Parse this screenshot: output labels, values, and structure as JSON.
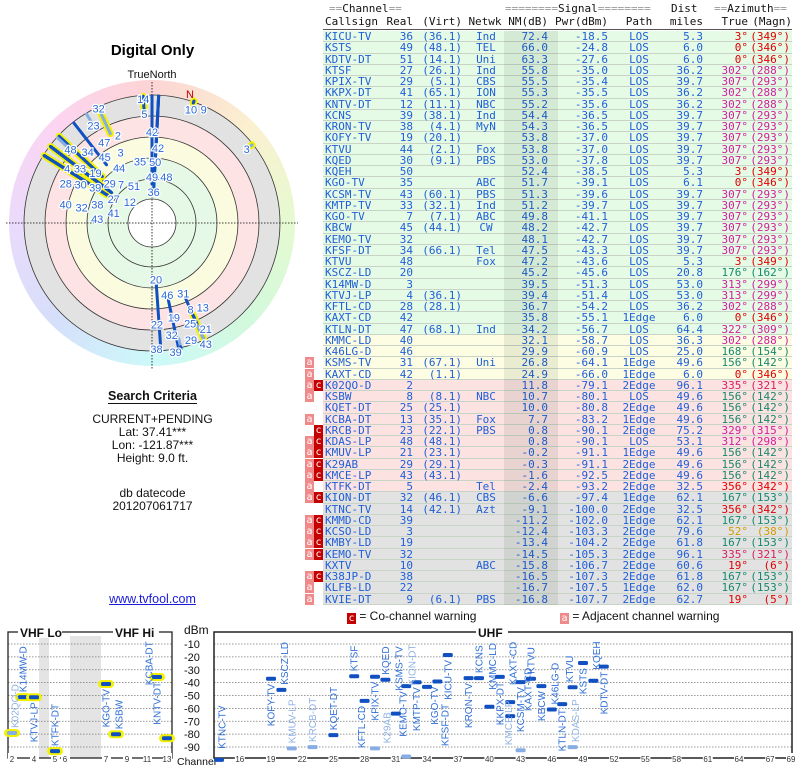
{
  "header": {
    "title": "Digital Only",
    "north_label": "TrueNorth",
    "n_marker": "N"
  },
  "criteria": {
    "heading": "Search Criteria",
    "mode": "CURRENT+PENDING",
    "lat": "Lat: 37.41***",
    "lon": "Lon: -121.87***",
    "height": "Height: 9.0 ft.",
    "db_label": "db datecode",
    "db_code": "201207061717",
    "link": "www.tvfool.com"
  },
  "table": {
    "group_headers": {
      "channel": "Channel",
      "signal": "Signal",
      "dist": "Dist",
      "azimuth": "Azimuth"
    },
    "columns": {
      "callsign": "Callsign",
      "real": "Real",
      "virt": "(Virt)",
      "netwk": "Netwk",
      "nm": "NM(dB)",
      "pwr": "Pwr(dBm)",
      "path": "Path",
      "dist": "miles",
      "true": "True",
      "magn": "(Magn)"
    },
    "zone_colors": {
      "green": "#e6fbe6",
      "yellow": "#fdfde3",
      "pink": "#fde2e2",
      "gray": "#e2e2e2"
    },
    "rows": [
      {
        "flags": "",
        "call": "KICU-TV",
        "real": "36",
        "virt": "(36.1)",
        "net": "Ind",
        "nm": "72.4",
        "pwr": "-18.5",
        "path": "LOS",
        "dist": "5.3",
        "true": "3°",
        "magn": "(349°)",
        "zone": "green",
        "az": "#e00000"
      },
      {
        "flags": "",
        "call": "KSTS",
        "real": "49",
        "virt": "(48.1)",
        "net": "TEL",
        "nm": "66.0",
        "pwr": "-24.8",
        "path": "LOS",
        "dist": "6.0",
        "true": "0°",
        "magn": "(346°)",
        "zone": "green",
        "az": "#e00000"
      },
      {
        "flags": "",
        "call": "KDTV-DT",
        "real": "51",
        "virt": "(14.1)",
        "net": "Uni",
        "nm": "63.3",
        "pwr": "-27.6",
        "path": "LOS",
        "dist": "6.0",
        "true": "0°",
        "magn": "(346°)",
        "zone": "green",
        "az": "#e00000"
      },
      {
        "flags": "",
        "call": "KTSF",
        "real": "27",
        "virt": "(26.1)",
        "net": "Ind",
        "nm": "55.8",
        "pwr": "-35.0",
        "path": "LOS",
        "dist": "36.2",
        "true": "302°",
        "magn": "(288°)",
        "zone": "green",
        "az": "#d0209c"
      },
      {
        "flags": "",
        "call": "KPIX-TV",
        "real": "29",
        "virt": "(5.1)",
        "net": "CBS",
        "nm": "55.5",
        "pwr": "-35.4",
        "path": "LOS",
        "dist": "39.7",
        "true": "307°",
        "magn": "(293°)",
        "zone": "green",
        "az": "#d0209c"
      },
      {
        "flags": "",
        "call": "KKPX-DT",
        "real": "41",
        "virt": "(65.1)",
        "net": "ION",
        "nm": "55.3",
        "pwr": "-35.5",
        "path": "LOS",
        "dist": "36.2",
        "true": "302°",
        "magn": "(288°)",
        "zone": "green",
        "az": "#d0209c"
      },
      {
        "flags": "",
        "call": "KNTV-DT",
        "real": "12",
        "virt": "(11.1)",
        "net": "NBC",
        "nm": "55.2",
        "pwr": "-35.6",
        "path": "LOS",
        "dist": "36.2",
        "true": "302°",
        "magn": "(288°)",
        "zone": "green",
        "az": "#d0209c"
      },
      {
        "flags": "",
        "call": "KCNS",
        "real": "39",
        "virt": "(38.1)",
        "net": "Ind",
        "nm": "54.4",
        "pwr": "-36.5",
        "path": "LOS",
        "dist": "39.7",
        "true": "307°",
        "magn": "(293°)",
        "zone": "green",
        "az": "#d0209c"
      },
      {
        "flags": "",
        "call": "KRON-TV",
        "real": "38",
        "virt": "(4.1)",
        "net": "MyN",
        "nm": "54.3",
        "pwr": "-36.5",
        "path": "LOS",
        "dist": "39.7",
        "true": "307°",
        "magn": "(293°)",
        "zone": "green",
        "az": "#d0209c"
      },
      {
        "flags": "",
        "call": "KOFY-TV",
        "real": "19",
        "virt": "(20.1)",
        "net": "",
        "nm": "53.8",
        "pwr": "-37.0",
        "path": "LOS",
        "dist": "39.7",
        "true": "307°",
        "magn": "(293°)",
        "zone": "green",
        "az": "#d0209c"
      },
      {
        "flags": "",
        "call": "KTVU",
        "real": "44",
        "virt": "(2.1)",
        "net": "Fox",
        "nm": "53.8",
        "pwr": "-37.0",
        "path": "LOS",
        "dist": "39.7",
        "true": "307°",
        "magn": "(293°)",
        "zone": "green",
        "az": "#d0209c"
      },
      {
        "flags": "",
        "call": "KQED",
        "real": "30",
        "virt": "(9.1)",
        "net": "PBS",
        "nm": "53.0",
        "pwr": "-37.8",
        "path": "LOS",
        "dist": "39.7",
        "true": "307°",
        "magn": "(293°)",
        "zone": "green",
        "az": "#d0209c"
      },
      {
        "flags": "",
        "call": "KQEH",
        "real": "50",
        "virt": "",
        "net": "",
        "nm": "52.4",
        "pwr": "-38.5",
        "path": "LOS",
        "dist": "5.3",
        "true": "3°",
        "magn": "(349°)",
        "zone": "green",
        "az": "#e00000"
      },
      {
        "flags": "",
        "call": "KGO-TV",
        "real": "35",
        "virt": "",
        "net": "ABC",
        "nm": "51.7",
        "pwr": "-39.1",
        "path": "LOS",
        "dist": "6.1",
        "true": "0°",
        "magn": "(346°)",
        "zone": "green",
        "az": "#e00000"
      },
      {
        "flags": "",
        "call": "KCSM-TV",
        "real": "43",
        "virt": "(60.1)",
        "net": "PBS",
        "nm": "51.3",
        "pwr": "-39.6",
        "path": "LOS",
        "dist": "39.7",
        "true": "307°",
        "magn": "(293°)",
        "zone": "green",
        "az": "#d0209c"
      },
      {
        "flags": "",
        "call": "KMTP-TV",
        "real": "33",
        "virt": "(32.1)",
        "net": "Ind",
        "nm": "51.2",
        "pwr": "-39.7",
        "path": "LOS",
        "dist": "39.7",
        "true": "307°",
        "magn": "(293°)",
        "zone": "green",
        "az": "#d0209c"
      },
      {
        "flags": "",
        "call": "KGO-TV",
        "real": "7",
        "virt": "(7.1)",
        "net": "ABC",
        "nm": "49.8",
        "pwr": "-41.1",
        "path": "LOS",
        "dist": "39.7",
        "true": "307°",
        "magn": "(293°)",
        "zone": "green",
        "az": "#d0209c"
      },
      {
        "flags": "",
        "call": "KBCW",
        "real": "45",
        "virt": "(44.1)",
        "net": "CW",
        "nm": "48.2",
        "pwr": "-42.7",
        "path": "LOS",
        "dist": "39.7",
        "true": "307°",
        "magn": "(293°)",
        "zone": "green",
        "az": "#d0209c"
      },
      {
        "flags": "",
        "call": "KEMO-TV",
        "real": "32",
        "virt": "",
        "net": "",
        "nm": "48.1",
        "pwr": "-42.7",
        "path": "LOS",
        "dist": "39.7",
        "true": "307°",
        "magn": "(293°)",
        "zone": "green",
        "az": "#d0209c"
      },
      {
        "flags": "",
        "call": "KFSF-DT",
        "real": "34",
        "virt": "(66.1)",
        "net": "Tel",
        "nm": "47.5",
        "pwr": "-43.3",
        "path": "LOS",
        "dist": "39.7",
        "true": "307°",
        "magn": "(293°)",
        "zone": "green",
        "az": "#d0209c"
      },
      {
        "flags": "",
        "call": "KTVU",
        "real": "48",
        "virt": "",
        "net": "Fox",
        "nm": "47.2",
        "pwr": "-43.6",
        "path": "LOS",
        "dist": "5.3",
        "true": "3°",
        "magn": "(349°)",
        "zone": "green",
        "az": "#e00000"
      },
      {
        "flags": "",
        "call": "KSCZ-LD",
        "real": "20",
        "virt": "",
        "net": "",
        "nm": "45.2",
        "pwr": "-45.6",
        "path": "LOS",
        "dist": "20.8",
        "true": "176°",
        "magn": "(162°)",
        "zone": "green",
        "az": "#16896e"
      },
      {
        "flags": "",
        "call": "K14MW-D",
        "real": "3",
        "virt": "",
        "net": "",
        "nm": "39.5",
        "pwr": "-51.3",
        "path": "LOS",
        "dist": "53.0",
        "true": "313°",
        "magn": "(299°)",
        "zone": "green",
        "az": "#d0209c"
      },
      {
        "flags": "",
        "call": "KTVJ-LP",
        "real": "4",
        "virt": "(36.1)",
        "net": "",
        "nm": "39.4",
        "pwr": "-51.4",
        "path": "LOS",
        "dist": "53.0",
        "true": "313°",
        "magn": "(299°)",
        "zone": "green",
        "az": "#d0209c"
      },
      {
        "flags": "",
        "call": "KFTL-CD",
        "real": "28",
        "virt": "(28.1)",
        "net": "",
        "nm": "36.7",
        "pwr": "-54.2",
        "path": "LOS",
        "dist": "36.2",
        "true": "302°",
        "magn": "(288°)",
        "zone": "green",
        "az": "#d0209c"
      },
      {
        "flags": "",
        "call": "KAXT-CD",
        "real": "42",
        "virt": "",
        "net": "",
        "nm": "35.8",
        "pwr": "-55.1",
        "path": "1Edge",
        "dist": "6.0",
        "true": "0°",
        "magn": "(346°)",
        "zone": "green",
        "az": "#e00000"
      },
      {
        "flags": "",
        "call": "KTLN-DT",
        "real": "47",
        "virt": "(68.1)",
        "net": "Ind",
        "nm": "34.2",
        "pwr": "-56.7",
        "path": "LOS",
        "dist": "64.4",
        "true": "322°",
        "magn": "(309°)",
        "zone": "green",
        "az": "#d0209c"
      },
      {
        "flags": "",
        "call": "KMMC-LD",
        "real": "40",
        "virt": "",
        "net": "",
        "nm": "32.1",
        "pwr": "-58.7",
        "path": "LOS",
        "dist": "36.3",
        "true": "302°",
        "magn": "(288°)",
        "zone": "yellow",
        "az": "#d0209c"
      },
      {
        "flags": "",
        "call": "K46LG-D",
        "real": "46",
        "virt": "",
        "net": "",
        "nm": "29.9",
        "pwr": "-60.9",
        "path": "LOS",
        "dist": "25.0",
        "true": "168°",
        "magn": "(154°)",
        "zone": "yellow",
        "az": "#16896e"
      },
      {
        "flags": "a",
        "call": "KSMS-TV",
        "real": "31",
        "virt": "(67.1)",
        "net": "Uni",
        "nm": "26.8",
        "pwr": "-64.1",
        "path": "1Edge",
        "dist": "49.6",
        "true": "156°",
        "magn": "(142°)",
        "zone": "yellow",
        "az": "#16896e"
      },
      {
        "flags": "a",
        "call": "KAXT-CD",
        "real": "42",
        "virt": "(1.1)",
        "net": "",
        "nm": "24.9",
        "pwr": "-66.0",
        "path": "1Edge",
        "dist": "6.0",
        "true": "0°",
        "magn": "(346°)",
        "zone": "yellow",
        "az": "#e00000"
      },
      {
        "flags": "ac",
        "call": "K02QO-D",
        "real": "2",
        "virt": "",
        "net": "",
        "nm": "11.8",
        "pwr": "-79.1",
        "path": "2Edge",
        "dist": "96.1",
        "true": "335°",
        "magn": "(321°)",
        "zone": "pink",
        "az": "#d81e5e"
      },
      {
        "flags": "a",
        "call": "KSBW",
        "real": "8",
        "virt": "(8.1)",
        "net": "NBC",
        "nm": "10.7",
        "pwr": "-80.1",
        "path": "LOS",
        "dist": "49.6",
        "true": "156°",
        "magn": "(142°)",
        "zone": "pink",
        "az": "#16896e"
      },
      {
        "flags": "",
        "call": "KQET-DT",
        "real": "25",
        "virt": "(25.1)",
        "net": "",
        "nm": "10.0",
        "pwr": "-80.8",
        "path": "2Edge",
        "dist": "49.6",
        "true": "156°",
        "magn": "(142°)",
        "zone": "pink",
        "az": "#16896e"
      },
      {
        "flags": "a",
        "call": "KCBA-DT",
        "real": "13",
        "virt": "(35.1)",
        "net": "Fox",
        "nm": "7.7",
        "pwr": "-83.2",
        "path": "1Edge",
        "dist": "49.6",
        "true": "156°",
        "magn": "(142°)",
        "zone": "pink",
        "az": "#16896e"
      },
      {
        "flags": "c",
        "call": "KRCB-DT",
        "real": "23",
        "virt": "(22.1)",
        "net": "PBS",
        "nm": "0.8",
        "pwr": "-90.1",
        "path": "2Edge",
        "dist": "75.2",
        "true": "329°",
        "magn": "(315°)",
        "zone": "pink",
        "az": "#d0209c"
      },
      {
        "flags": "ac",
        "call": "KDAS-LP",
        "real": "48",
        "virt": "(48.1)",
        "net": "",
        "nm": "0.8",
        "pwr": "-90.1",
        "path": "LOS",
        "dist": "53.1",
        "true": "312°",
        "magn": "(298°)",
        "zone": "pink",
        "az": "#d0209c"
      },
      {
        "flags": "ac",
        "call": "KMUV-LP",
        "real": "21",
        "virt": "(23.1)",
        "net": "",
        "nm": "-0.2",
        "pwr": "-91.1",
        "path": "1Edge",
        "dist": "49.6",
        "true": "156°",
        "magn": "(142°)",
        "zone": "pink",
        "az": "#16896e"
      },
      {
        "flags": "ac",
        "call": "K29AB",
        "real": "29",
        "virt": "(29.1)",
        "net": "",
        "nm": "-0.3",
        "pwr": "-91.1",
        "path": "2Edge",
        "dist": "49.6",
        "true": "156°",
        "magn": "(142°)",
        "zone": "pink",
        "az": "#16896e"
      },
      {
        "flags": "ac",
        "call": "KMCE-LP",
        "real": "43",
        "virt": "(43.1)",
        "net": "",
        "nm": "-1.6",
        "pwr": "-92.5",
        "path": "2Edge",
        "dist": "49.6",
        "true": "156°",
        "magn": "(142°)",
        "zone": "pink",
        "az": "#16896e"
      },
      {
        "flags": "a",
        "call": "KTFK-DT",
        "real": "5",
        "virt": "",
        "net": "Tel",
        "nm": "-2.4",
        "pwr": "-93.2",
        "path": "2Edge",
        "dist": "32.5",
        "true": "356°",
        "magn": "(342°)",
        "zone": "pink",
        "az": "#e00000"
      },
      {
        "flags": "ac",
        "call": "KION-DT",
        "real": "32",
        "virt": "(46.1)",
        "net": "CBS",
        "nm": "-6.6",
        "pwr": "-97.4",
        "path": "1Edge",
        "dist": "62.1",
        "true": "167°",
        "magn": "(153°)",
        "zone": "gray",
        "az": "#16896e"
      },
      {
        "flags": "",
        "call": "KTNC-TV",
        "real": "14",
        "virt": "(42.1)",
        "net": "Azt",
        "nm": "-9.1",
        "pwr": "-100.0",
        "path": "2Edge",
        "dist": "32.5",
        "true": "356°",
        "magn": "(342°)",
        "zone": "gray",
        "az": "#e00000"
      },
      {
        "flags": "ac",
        "call": "KMMD-CD",
        "real": "39",
        "virt": "",
        "net": "",
        "nm": "-11.2",
        "pwr": "-102.0",
        "path": "1Edge",
        "dist": "62.1",
        "true": "167°",
        "magn": "(153°)",
        "zone": "gray",
        "az": "#16896e"
      },
      {
        "flags": "ac",
        "call": "KCSO-LD",
        "real": "3",
        "virt": "",
        "net": "",
        "nm": "-12.4",
        "pwr": "-103.3",
        "path": "2Edge",
        "dist": "79.6",
        "true": "52°",
        "magn": "(38°)",
        "zone": "gray",
        "az": "#d49a00"
      },
      {
        "flags": "ac",
        "call": "KMBY-LD",
        "real": "19",
        "virt": "",
        "net": "",
        "nm": "-13.4",
        "pwr": "-104.2",
        "path": "2Edge",
        "dist": "61.8",
        "true": "167°",
        "magn": "(153°)",
        "zone": "gray",
        "az": "#16896e"
      },
      {
        "flags": "ac",
        "call": "KEMO-TV",
        "real": "32",
        "virt": "",
        "net": "",
        "nm": "-14.5",
        "pwr": "-105.3",
        "path": "2Edge",
        "dist": "96.1",
        "true": "335°",
        "magn": "(321°)",
        "zone": "gray",
        "az": "#d81e5e"
      },
      {
        "flags": "",
        "call": "KXTV",
        "real": "10",
        "virt": "",
        "net": "ABC",
        "nm": "-15.8",
        "pwr": "-106.7",
        "path": "2Edge",
        "dist": "60.6",
        "true": "19°",
        "magn": "(6°)",
        "zone": "gray",
        "az": "#e00000"
      },
      {
        "flags": "ac",
        "call": "K38JP-D",
        "real": "38",
        "virt": "",
        "net": "",
        "nm": "-16.5",
        "pwr": "-107.3",
        "path": "2Edge",
        "dist": "61.8",
        "true": "167°",
        "magn": "(153°)",
        "zone": "gray",
        "az": "#16896e"
      },
      {
        "flags": "a",
        "call": "KLFB-LD",
        "real": "22",
        "virt": "",
        "net": "",
        "nm": "-16.7",
        "pwr": "-107.5",
        "path": "1Edge",
        "dist": "62.0",
        "true": "167°",
        "magn": "(153°)",
        "zone": "gray",
        "az": "#16896e"
      },
      {
        "flags": "a",
        "call": "KVIE-DT",
        "real": "9",
        "virt": "(6.1)",
        "net": "PBS",
        "nm": "-16.8",
        "pwr": "-107.7",
        "path": "2Edge",
        "dist": "62.7",
        "true": "19°",
        "magn": "(5°)",
        "zone": "gray",
        "az": "#e00000"
      }
    ]
  },
  "legend": {
    "co_flag": "c",
    "co_label": "= Co-channel warning",
    "adj_flag": "a",
    "adj_label": "= Adjacent channel warning",
    "co_color": "#c40000",
    "adj_color": "#f08a8a"
  },
  "spectrum": {
    "vhf_lo": "VHF Lo",
    "vhf_hi": "VHF Hi",
    "uhf": "UHF",
    "unit": "dBm",
    "channel_label": "Channel",
    "dbm_ticks": [
      "-10",
      "-20",
      "-30",
      "-40",
      "-50",
      "-60",
      "-70",
      "-80",
      "-90"
    ],
    "vhf_ticks": [
      "2",
      "4",
      "5",
      "6",
      "7",
      "9",
      "11",
      "13"
    ],
    "uhf_ticks": [
      "16",
      "19",
      "22",
      "25",
      "28",
      "31",
      "34",
      "37",
      "40",
      "43",
      "46",
      "49",
      "52",
      "55",
      "58",
      "61",
      "64",
      "67",
      "69"
    ],
    "bar_color": "#1050c0",
    "faded_color": "#86aee4",
    "highlight_color": "#f2f200"
  }
}
